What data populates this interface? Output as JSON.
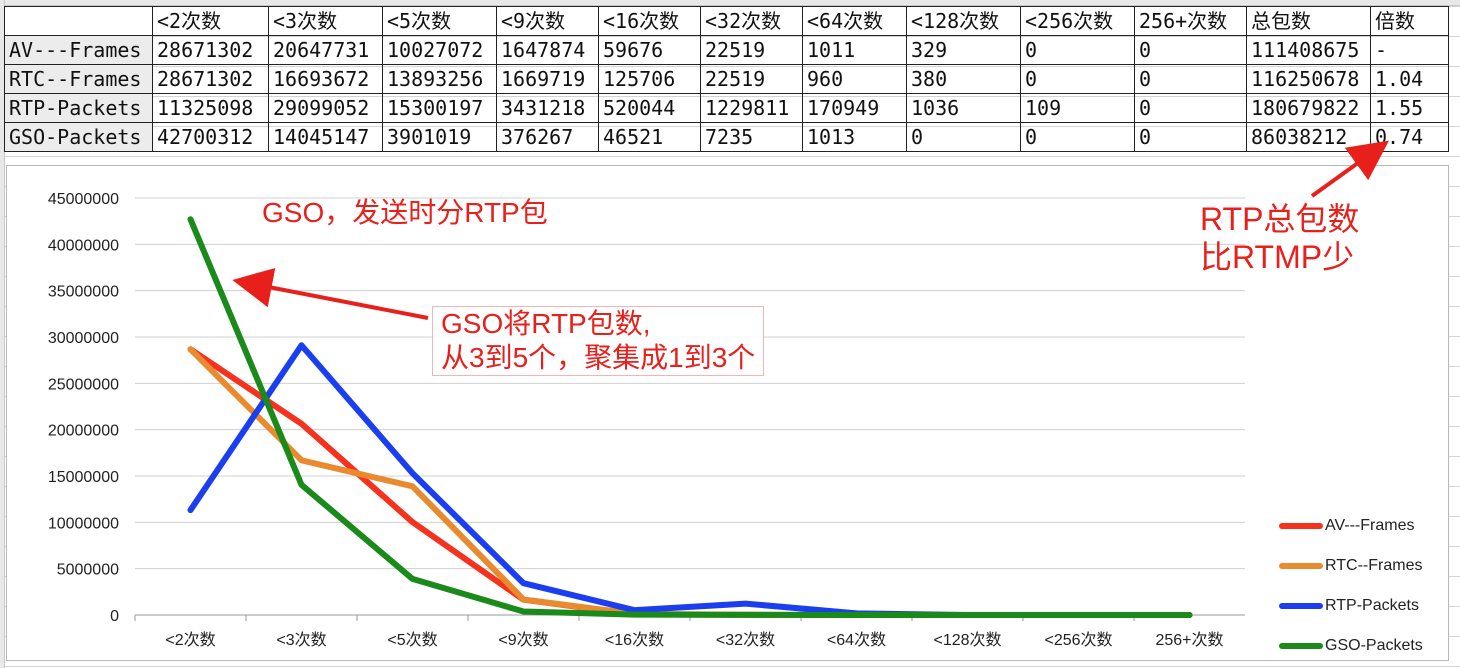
{
  "table": {
    "corner": "",
    "headers": [
      "<2次数",
      "<3次数",
      "<5次数",
      "<9次数",
      "<16次数",
      "<32次数",
      "<64次数",
      "<128次数",
      "<256次数",
      "256+次数",
      "总包数",
      "倍数"
    ],
    "rows": [
      {
        "label": "AV---Frames",
        "cells": [
          "28671302",
          "20647731",
          "10027072",
          "1647874",
          "59676",
          "22519",
          "1011",
          "329",
          "0",
          "0",
          "111408675",
          "-"
        ]
      },
      {
        "label": "RTC--Frames",
        "cells": [
          "28671302",
          "16693672",
          "13893256",
          "1669719",
          "125706",
          "22519",
          "960",
          "380",
          "0",
          "0",
          "116250678",
          "1.04"
        ]
      },
      {
        "label": "RTP-Packets",
        "cells": [
          "11325098",
          "29099052",
          "15300197",
          "3431218",
          "520044",
          "1229811",
          "170949",
          "1036",
          "109",
          "0",
          "180679822",
          "1.55"
        ]
      },
      {
        "label": "GSO-Packets",
        "cells": [
          "42700312",
          "14045147",
          "3901019",
          "376267",
          "46521",
          "7235",
          "1013",
          "0",
          "0",
          "0",
          "86038212",
          "0.74"
        ]
      }
    ]
  },
  "annotations": {
    "gso_split": "GSO，发送时分RTP包",
    "gso_merge_line1": "GSO将RTP包数,",
    "gso_merge_line2": "从3到5个，聚集成1到3个",
    "rtp_total_line1": "RTP总包数",
    "rtp_total_line2": "比RTMP少"
  },
  "colors": {
    "annotation": "#e8201c"
  },
  "chart_data": {
    "type": "line",
    "categories": [
      "<2次数",
      "<3次数",
      "<5次数",
      "<9次数",
      "<16次数",
      "<32次数",
      "<64次数",
      "<128次数",
      "<256次数",
      "256+次数"
    ],
    "ylim": [
      0,
      45000000
    ],
    "yticks": [
      0,
      5000000,
      10000000,
      15000000,
      20000000,
      25000000,
      30000000,
      35000000,
      40000000,
      45000000
    ],
    "grid": true,
    "legend": "right",
    "series": [
      {
        "name": "AV---Frames",
        "color": "#f5321e",
        "values": [
          28671302,
          20647731,
          10027072,
          1647874,
          59676,
          22519,
          1011,
          329,
          0,
          0
        ]
      },
      {
        "name": "RTC--Frames",
        "color": "#ea8a2e",
        "values": [
          28671302,
          16693672,
          13893256,
          1669719,
          125706,
          22519,
          960,
          380,
          0,
          0
        ]
      },
      {
        "name": "RTP-Packets",
        "color": "#1b3ff0",
        "values": [
          11325098,
          29099052,
          15300197,
          3431218,
          520044,
          1229811,
          170949,
          1036,
          109,
          0
        ]
      },
      {
        "name": "GSO-Packets",
        "color": "#1a8a1a",
        "values": [
          42700312,
          14045147,
          3901019,
          376267,
          46521,
          7235,
          1013,
          0,
          0,
          0
        ]
      }
    ]
  }
}
